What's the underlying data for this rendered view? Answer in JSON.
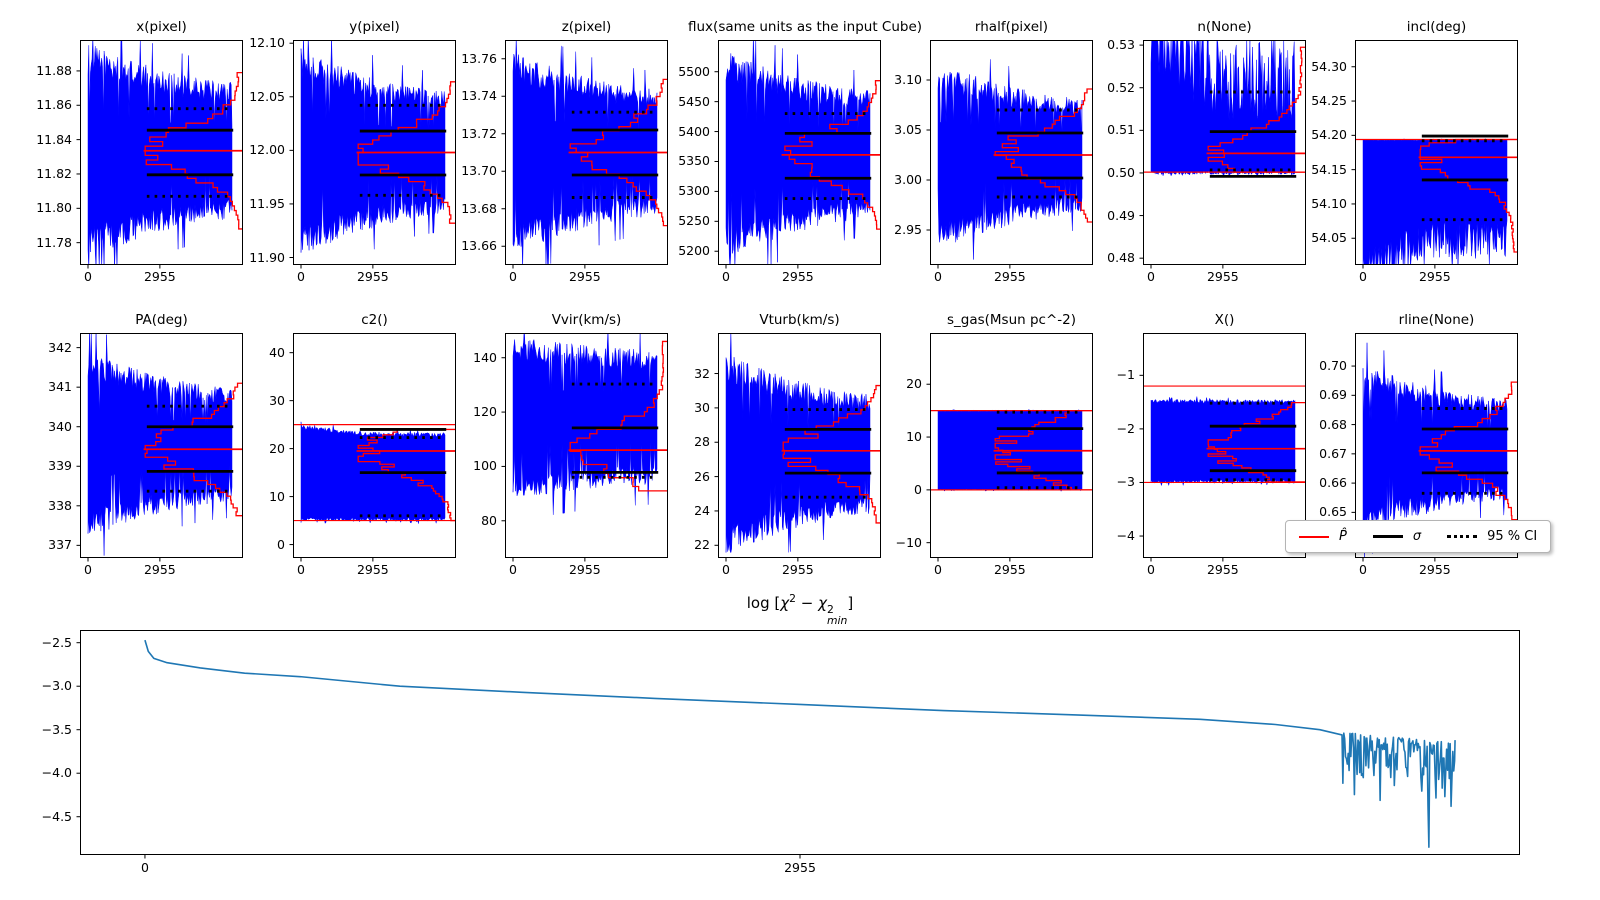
{
  "figure": {
    "background": "#ffffff"
  },
  "colors": {
    "trace": "#0000ff",
    "marginal": "#ff0000",
    "stat_lines": "#000000",
    "chi2_line": "#1f77b4",
    "axes": "#000000"
  },
  "legend": {
    "items": [
      {
        "label": "P̂",
        "style": "red-line",
        "italic": true
      },
      {
        "label": "σ",
        "style": "black-line",
        "italic": true
      },
      {
        "label": "95 % CI",
        "style": "black-dotted",
        "italic": false
      }
    ]
  },
  "chart_data": {
    "type": "mcmc-trace-grid",
    "description": "14 MCMC parameter trace plots (blue chain, red marginal posterior, red median, black sigma bounds, dotted 95% CI) plus chi-square convergence line plot",
    "xticks": {
      "values": [
        0,
        2955
      ],
      "labels": [
        "0",
        "2955"
      ]
    },
    "panels": [
      {
        "title": "x(pixel)",
        "ylim": [
          11.767,
          11.898
        ],
        "yticks": {
          "values": [
            11.78,
            11.8,
            11.82,
            11.84,
            11.86,
            11.88
          ],
          "labels": [
            "11.78",
            "11.80",
            "11.82",
            "11.84",
            "11.86",
            "11.88"
          ]
        },
        "median": 11.8335,
        "sigma": [
          11.8195,
          11.8455
        ],
        "ci": [
          11.807,
          11.858
        ],
        "bounds": null,
        "hist_sigma": 0.013,
        "hist_range": [
          11.788,
          11.879
        ],
        "trace": {
          "mode": "funnel",
          "center": 11.8335,
          "amp_start": 0.063,
          "amp_end": 0.04
        }
      },
      {
        "title": "y(pixel)",
        "ylim": [
          11.893,
          12.103
        ],
        "yticks": {
          "values": [
            11.9,
            11.95,
            12.0,
            12.05,
            12.1
          ],
          "labels": [
            "11.90",
            "11.95",
            "12.00",
            "12.05",
            "12.10"
          ]
        },
        "median": 11.998,
        "sigma": [
          11.977,
          12.018
        ],
        "ci": [
          11.958,
          12.042
        ],
        "bounds": null,
        "hist_sigma": 0.0205,
        "hist_range": [
          11.932,
          12.064
        ],
        "trace": {
          "mode": "funnel",
          "center": 11.998,
          "amp_start": 0.097,
          "amp_end": 0.058
        }
      },
      {
        "title": "z(pixel)",
        "ylim": [
          13.65,
          13.77
        ],
        "yticks": {
          "values": [
            13.66,
            13.68,
            13.7,
            13.72,
            13.74,
            13.76
          ],
          "labels": [
            "13.66",
            "13.68",
            "13.70",
            "13.72",
            "13.74",
            "13.76"
          ]
        },
        "median": 13.71,
        "sigma": [
          13.698,
          13.722
        ],
        "ci": [
          13.686,
          13.7315
        ],
        "bounds": null,
        "hist_sigma": 0.012,
        "hist_range": [
          13.671,
          13.749
        ],
        "trace": {
          "mode": "funnel",
          "center": 13.71,
          "amp_start": 0.054,
          "amp_end": 0.034
        }
      },
      {
        "title": "flux(same units as the input Cube)",
        "ylim": [
          5177,
          5553
        ],
        "yticks": {
          "values": [
            5200,
            5250,
            5300,
            5350,
            5400,
            5450,
            5500
          ],
          "labels": [
            "5200",
            "5250",
            "5300",
            "5350",
            "5400",
            "5450",
            "5500"
          ]
        },
        "median": 5361,
        "sigma": [
          5322,
          5397
        ],
        "ci": [
          5288,
          5430
        ],
        "bounds": null,
        "hist_sigma": 37,
        "hist_range": [
          5237,
          5485
        ],
        "trace": {
          "mode": "funnel",
          "center": 5362,
          "amp_start": 175,
          "amp_end": 108
        }
      },
      {
        "title": "rhalf(pixel)",
        "ylim": [
          2.915,
          3.14
        ],
        "yticks": {
          "values": [
            2.95,
            3.0,
            3.05,
            3.1
          ],
          "labels": [
            "2.95",
            "3.00",
            "3.05",
            "3.10"
          ]
        },
        "median": 3.025,
        "sigma": [
          3.002,
          3.047
        ],
        "ci": [
          2.983,
          3.07
        ],
        "bounds": null,
        "hist_sigma": 0.0225,
        "hist_range": [
          2.958,
          3.091
        ],
        "trace": {
          "mode": "funnel",
          "center": 3.024,
          "amp_start": 0.094,
          "amp_end": 0.058
        }
      },
      {
        "title": "n(None)",
        "ylim": [
          0.4784,
          0.5312
        ],
        "yticks": {
          "values": [
            0.48,
            0.49,
            0.5,
            0.51,
            0.52,
            0.53
          ],
          "labels": [
            "0.48",
            "0.49",
            "0.50",
            "0.51",
            "0.52",
            "0.53"
          ]
        },
        "median": 0.5046,
        "sigma": [
          0.4992,
          0.5097
        ],
        "ci": [
          0.5007,
          0.519
        ],
        "bounds": [
          0.5002,
          null
        ],
        "hist_sigma": 0.0051,
        "hist_range": [
          0.5002,
          0.5295
        ],
        "trace": {
          "mode": "band",
          "top_start": 0.5312,
          "top_end": 0.518,
          "top_noise": 0.01,
          "top_burn": 0.5,
          "bottom_start": 0.5002,
          "bottom_end": 0.5002,
          "bottom_noise": 0.0004,
          "bottom_burn": 0
        }
      },
      {
        "title": "incl(deg)",
        "ylim": [
          54.011,
          54.339
        ],
        "yticks": {
          "values": [
            54.05,
            54.1,
            54.15,
            54.2,
            54.25,
            54.3
          ],
          "labels": [
            "54.05",
            "54.10",
            "54.15",
            "54.20",
            "54.25",
            "54.30"
          ]
        },
        "median": 54.168,
        "sigma": [
          54.135,
          54.199
        ],
        "ci": [
          54.077,
          54.192
        ],
        "bounds": [
          null,
          54.194
        ],
        "hist_sigma": 0.0325,
        "hist_range": [
          54.03,
          54.194
        ],
        "trace": {
          "mode": "band",
          "top_start": 54.193,
          "top_end": 54.193,
          "top_noise": 0.0008,
          "top_burn": 0,
          "bottom_start": 54.011,
          "bottom_end": 54.062,
          "bottom_noise": 0.03,
          "bottom_burn": 0.55
        }
      },
      {
        "title": "PA(deg)",
        "ylim": [
          336.68,
          342.37
        ],
        "yticks": {
          "values": [
            337,
            338,
            339,
            340,
            341,
            342
          ],
          "labels": [
            "337",
            "338",
            "339",
            "340",
            "341",
            "342"
          ]
        },
        "median": 339.43,
        "sigma": [
          338.87,
          340.0
        ],
        "ci": [
          338.37,
          340.52
        ],
        "bounds": null,
        "hist_sigma": 0.57,
        "hist_range": [
          337.75,
          341.1
        ],
        "trace": {
          "mode": "funnel",
          "center": 339.55,
          "amp_start": 2.35,
          "amp_end": 1.45
        }
      },
      {
        "title": "c2()",
        "ylim": [
          -2.8,
          44.1
        ],
        "yticks": {
          "values": [
            0,
            10,
            20,
            30,
            40
          ],
          "labels": [
            "0",
            "10",
            "20",
            "30",
            "40"
          ]
        },
        "median": 19.5,
        "sigma": [
          15.0,
          24.0
        ],
        "ci": [
          6.0,
          22.3
        ],
        "bounds": [
          5.0,
          25.0
        ],
        "hist_sigma": 4.5,
        "hist_range": [
          5.0,
          24.0
        ],
        "trace": {
          "mode": "band",
          "top_start": 24.2,
          "top_end": 22.7,
          "top_noise": 0.5,
          "top_burn": 0.6,
          "bottom_start": 5.3,
          "bottom_end": 5.4,
          "bottom_noise": 0.35,
          "bottom_burn": 0
        }
      },
      {
        "title": "Vvir(km/s)",
        "ylim": [
          66.3,
          149.1
        ],
        "yticks": {
          "values": [
            80,
            100,
            120,
            140
          ],
          "labels": [
            "80",
            "100",
            "120",
            "140"
          ]
        },
        "median": 106,
        "sigma": [
          97.8,
          114.2
        ],
        "ci": [
          96.0,
          130.3
        ],
        "bounds": null,
        "hist_sigma": 8.2,
        "hist_range": [
          91,
          146
        ],
        "trace": {
          "mode": "funnel",
          "center": 118,
          "amp_start": 30,
          "amp_end": 25
        }
      },
      {
        "title": "Vturb(km/s)",
        "ylim": [
          21.26,
          34.36
        ],
        "yticks": {
          "values": [
            22,
            24,
            26,
            28,
            30,
            32
          ],
          "labels": [
            "22",
            "24",
            "26",
            "28",
            "30",
            "32"
          ]
        },
        "median": 27.5,
        "sigma": [
          26.2,
          28.75
        ],
        "ci": [
          24.8,
          29.9
        ],
        "bounds": null,
        "hist_sigma": 1.25,
        "hist_range": [
          23.3,
          31.3
        ],
        "trace": {
          "mode": "funnel",
          "center": 27.3,
          "amp_start": 5.9,
          "amp_end": 3.5
        }
      },
      {
        "title": "s_gas(Msun pc^-2)",
        "ylim": [
          -12.9,
          29.7
        ],
        "yticks": {
          "values": [
            -10,
            0,
            10,
            20
          ],
          "labels": [
            "−10",
            "0",
            "10",
            "20"
          ]
        },
        "median": 7.4,
        "sigma": [
          3.2,
          11.6
        ],
        "ci": [
          0.4,
          14.7
        ],
        "bounds": [
          0.0,
          15.0
        ],
        "hist_sigma": 4.2,
        "hist_range": [
          0.0,
          15.0
        ],
        "trace": {
          "mode": "band",
          "top_start": 14.92,
          "top_end": 14.92,
          "top_noise": 0.12,
          "top_burn": 0,
          "bottom_start": 0.08,
          "bottom_end": 0.08,
          "bottom_noise": 0.12,
          "bottom_burn": 0
        }
      },
      {
        "title": "X()",
        "ylim": [
          -4.41,
          -0.21
        ],
        "yticks": {
          "values": [
            -1,
            -2,
            -3,
            -4
          ],
          "labels": [
            "−1",
            "−2",
            "−3",
            "−4"
          ]
        },
        "median": -2.37,
        "sigma": [
          -2.78,
          -1.95
        ],
        "ci": [
          -2.95,
          -1.52
        ],
        "bounds": [
          -3.0,
          -1.2
        ],
        "hist_sigma": 0.41,
        "hist_range": [
          -2.99,
          -1.51
        ],
        "trace": {
          "mode": "band",
          "top_start": -1.52,
          "top_end": -1.5,
          "top_noise": 0.035,
          "top_burn": 0,
          "bottom_start": -2.97,
          "bottom_end": -2.97,
          "bottom_noise": 0.03,
          "bottom_burn": 0
        }
      },
      {
        "title": "rline(None)",
        "ylim": [
          0.6344,
          0.7113
        ],
        "yticks": {
          "values": [
            0.65,
            0.66,
            0.67,
            0.68,
            0.69,
            0.7
          ],
          "labels": [
            "0.65",
            "0.66",
            "0.67",
            "0.68",
            "0.69",
            "0.70"
          ]
        },
        "median": 0.671,
        "sigma": [
          0.6635,
          0.6785
        ],
        "ci": [
          0.6565,
          0.6855
        ],
        "bounds": null,
        "hist_sigma": 0.0075,
        "hist_range": [
          0.6475,
          0.6945
        ],
        "trace": {
          "mode": "funnel",
          "center": 0.6715,
          "amp_start": 0.029,
          "amp_end": 0.0175
        }
      }
    ],
    "chi2": {
      "type": "line",
      "title_parts": {
        "prefix": "log [",
        "chi1": "χ",
        "sup1": "2",
        "minus": " − ",
        "chi2": "χ",
        "sup2": "2",
        "sub2": "min",
        "suffix": "]"
      },
      "ylim": [
        -4.94,
        -2.354
      ],
      "xlim": [
        -293,
        6203
      ],
      "yticks": {
        "values": [
          -2.5,
          -3.0,
          -3.5,
          -4.0,
          -4.5
        ],
        "labels": [
          "−2.5",
          "−3.0",
          "−3.5",
          "−4.0",
          "−4.5"
        ]
      },
      "xticks": {
        "values": [
          0,
          2955
        ],
        "labels": [
          "0",
          "2955"
        ]
      },
      "keypoints": [
        [
          0,
          -2.47
        ],
        [
          15,
          -2.6
        ],
        [
          40,
          -2.68
        ],
        [
          100,
          -2.73
        ],
        [
          250,
          -2.79
        ],
        [
          450,
          -2.85
        ],
        [
          700,
          -2.89
        ],
        [
          1150,
          -3.0
        ],
        [
          1700,
          -3.07
        ],
        [
          2300,
          -3.14
        ],
        [
          2955,
          -3.21
        ],
        [
          3600,
          -3.28
        ],
        [
          4200,
          -3.33
        ],
        [
          4760,
          -3.38
        ],
        [
          5100,
          -3.44
        ],
        [
          5300,
          -3.5
        ],
        [
          5400,
          -3.56
        ]
      ],
      "noise_region": {
        "x_start": 5400,
        "x_end": 5910,
        "y_top": -3.55,
        "y_typical": -3.95,
        "deep_spike_x": 5790,
        "deep_spike_y": -4.85
      }
    }
  }
}
